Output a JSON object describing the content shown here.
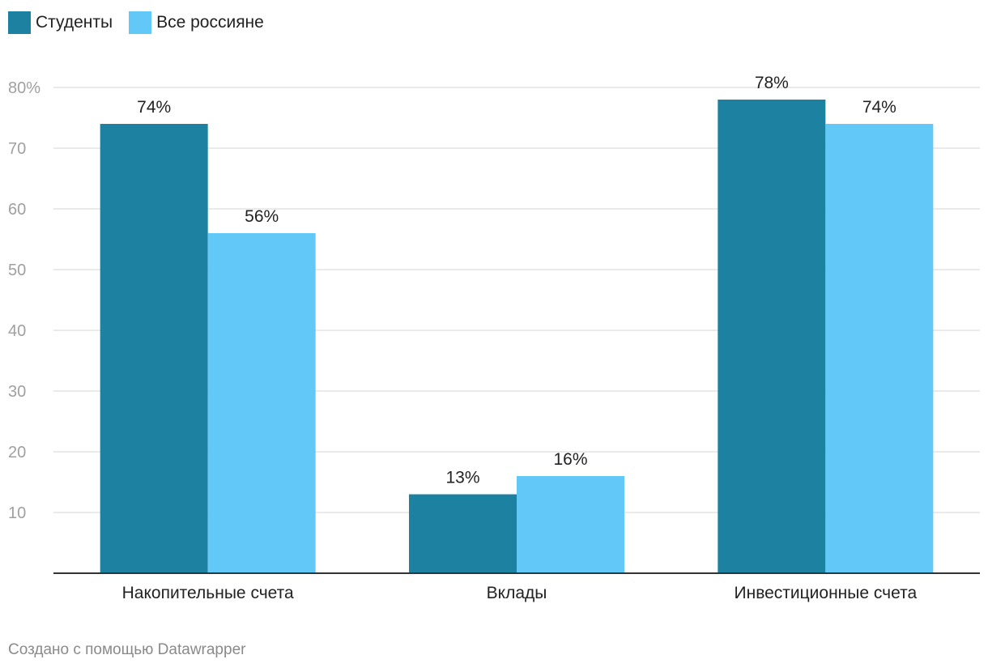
{
  "legend": {
    "items": [
      {
        "label": "Студенты",
        "color": "#1d81a2"
      },
      {
        "label": "Все россияне",
        "color": "#62c8f8"
      }
    ]
  },
  "chart_data": {
    "type": "bar",
    "categories": [
      "Накопительные счета",
      "Вклады",
      "Инвестиционные счета"
    ],
    "series": [
      {
        "name": "Студенты",
        "values": [
          74,
          13,
          78
        ],
        "labels": [
          "74%",
          "13%",
          "78%"
        ],
        "color": "#1d81a2"
      },
      {
        "name": "Все россияне",
        "values": [
          56,
          16,
          74
        ],
        "labels": [
          "56%",
          "16%",
          "74%"
        ],
        "color": "#62c8f8"
      }
    ],
    "ylim": [
      0,
      80
    ],
    "yticks": [
      10,
      20,
      30,
      40,
      50,
      60,
      70,
      80
    ],
    "ytick_labels": [
      "10",
      "20",
      "30",
      "40",
      "50",
      "60",
      "70",
      "80%"
    ],
    "grid": true,
    "legend_position": "top-left"
  },
  "footer": {
    "credit": "Создано с помощью Datawrapper"
  }
}
